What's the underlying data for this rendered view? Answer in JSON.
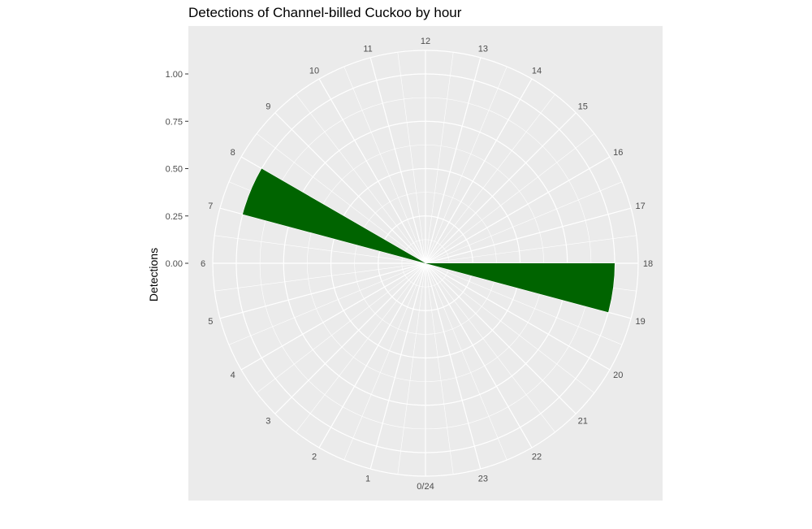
{
  "chart_data": {
    "type": "bar",
    "coord": "polar",
    "title": "Detections of Channel-billed Cuckoo by hour",
    "xlabel": "",
    "ylabel": "Detections",
    "y_ticks": [
      "0.00",
      "0.25",
      "0.50",
      "0.75",
      "1.00"
    ],
    "y_tick_values": [
      0,
      0.25,
      0.5,
      0.75,
      1.0
    ],
    "ylim": [
      0,
      1.0
    ],
    "x_tick_labels": [
      "0/24",
      "1",
      "2",
      "3",
      "4",
      "5",
      "6",
      "7",
      "8",
      "9",
      "10",
      "11",
      "12",
      "13",
      "14",
      "15",
      "16",
      "17",
      "18",
      "19",
      "20",
      "21",
      "22",
      "23"
    ],
    "x_range": [
      0,
      24
    ],
    "bars": [
      {
        "x_start": 7,
        "x_end": 8,
        "value": 1
      },
      {
        "x_start": 18,
        "x_end": 19,
        "value": 1
      }
    ],
    "bar_color": "#006400",
    "panel_color": "#ebebeb",
    "grid_color": "#ffffff",
    "grid": true
  }
}
